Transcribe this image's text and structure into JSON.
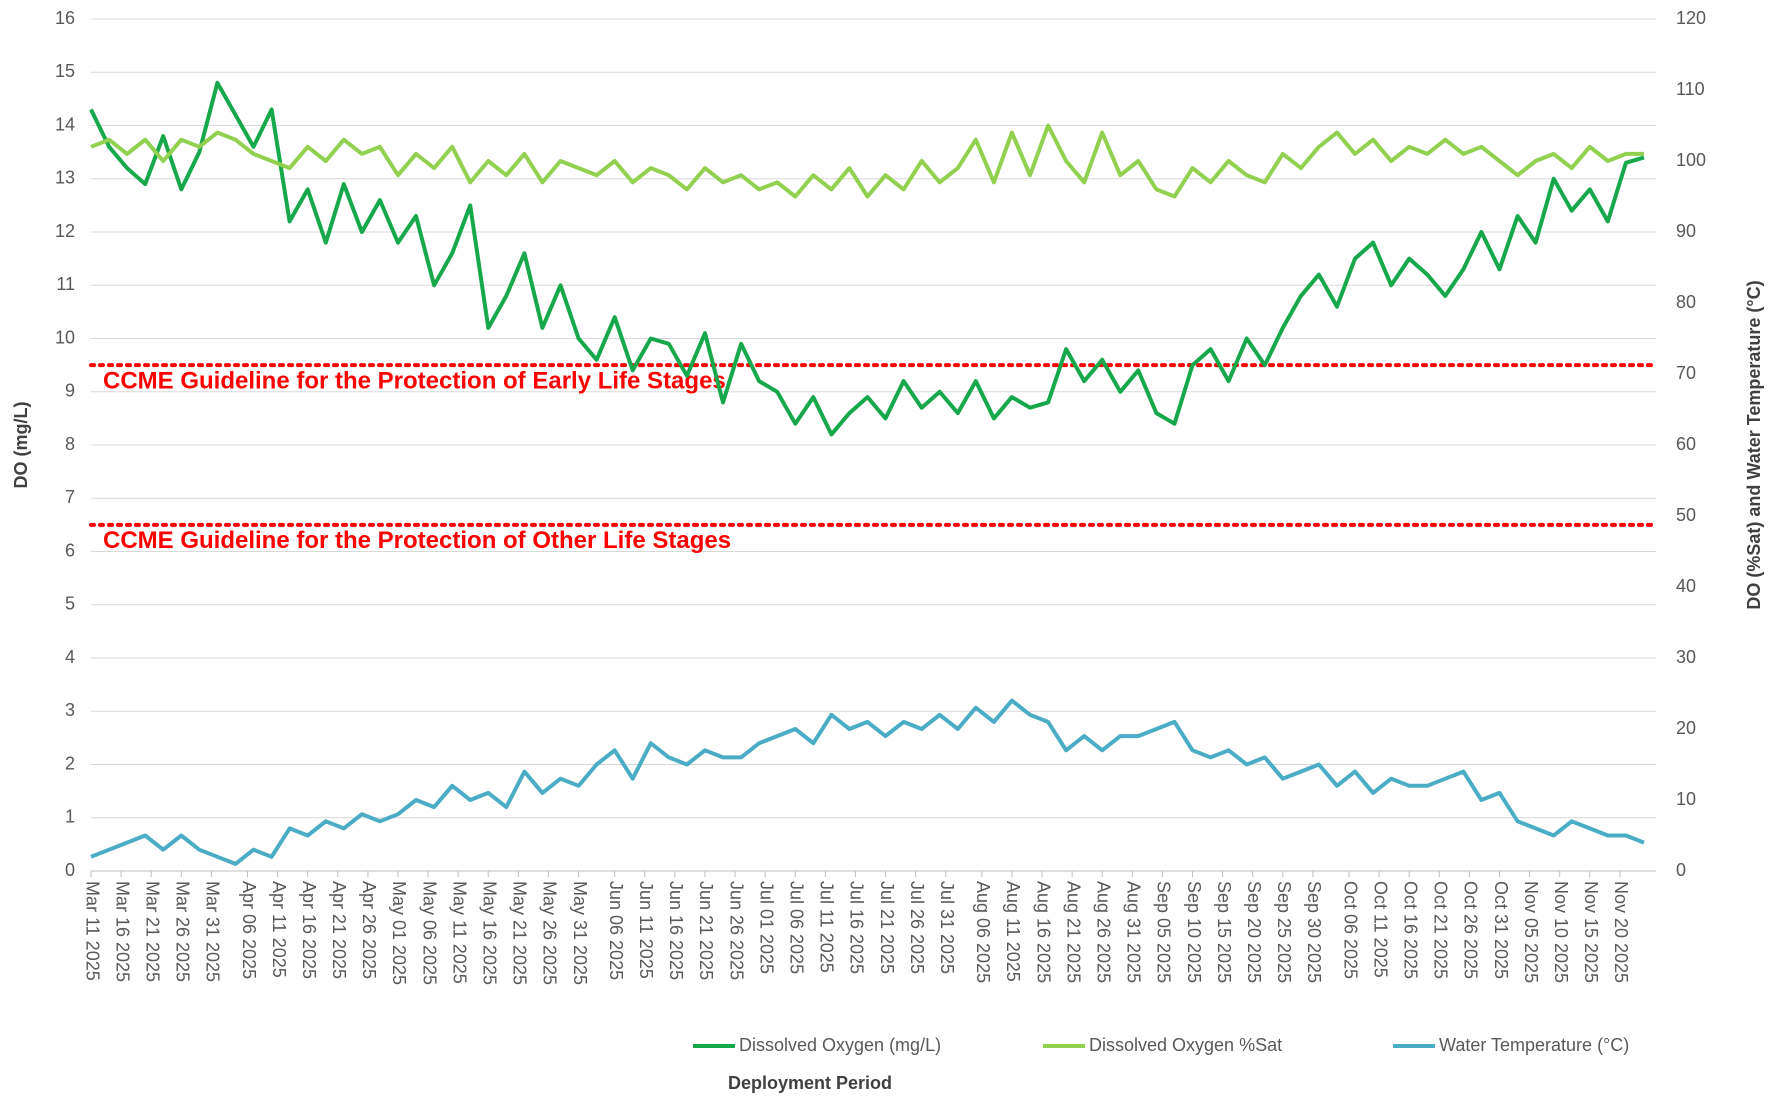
{
  "chart_data": {
    "type": "line",
    "y_label": "DO (mg/L)",
    "y2_label": "DO (%Sat) and Water Temperature (°C)",
    "x_label": "Deployment Period",
    "x": [
      "2025-03-11",
      "2025-03-14",
      "2025-03-17",
      "2025-03-20",
      "2025-03-23",
      "2025-03-26",
      "2025-03-29",
      "2025-04-01",
      "2025-04-04",
      "2025-04-07",
      "2025-04-10",
      "2025-04-13",
      "2025-04-16",
      "2025-04-19",
      "2025-04-22",
      "2025-04-25",
      "2025-04-28",
      "2025-05-01",
      "2025-05-04",
      "2025-05-07",
      "2025-05-10",
      "2025-05-13",
      "2025-05-16",
      "2025-05-19",
      "2025-05-22",
      "2025-05-25",
      "2025-05-28",
      "2025-05-31",
      "2025-06-03",
      "2025-06-06",
      "2025-06-09",
      "2025-06-12",
      "2025-06-15",
      "2025-06-18",
      "2025-06-21",
      "2025-06-24",
      "2025-06-27",
      "2025-06-30",
      "2025-07-03",
      "2025-07-06",
      "2025-07-09",
      "2025-07-12",
      "2025-07-15",
      "2025-07-18",
      "2025-07-21",
      "2025-07-24",
      "2025-07-27",
      "2025-07-30",
      "2025-08-02",
      "2025-08-05",
      "2025-08-08",
      "2025-08-11",
      "2025-08-14",
      "2025-08-17",
      "2025-08-20",
      "2025-08-23",
      "2025-08-26",
      "2025-08-29",
      "2025-09-01",
      "2025-09-04",
      "2025-09-07",
      "2025-09-10",
      "2025-09-13",
      "2025-09-16",
      "2025-09-19",
      "2025-09-22",
      "2025-09-25",
      "2025-09-28",
      "2025-10-01",
      "2025-10-04",
      "2025-10-07",
      "2025-10-10",
      "2025-10-13",
      "2025-10-16",
      "2025-10-19",
      "2025-10-22",
      "2025-10-25",
      "2025-10-28",
      "2025-10-31",
      "2025-11-03",
      "2025-11-06",
      "2025-11-09",
      "2025-11-12",
      "2025-11-15",
      "2025-11-18",
      "2025-11-21",
      "2025-11-24"
    ],
    "series": [
      {
        "name": "Dissolved Oxygen (mg/L)",
        "color": "#17a84b",
        "axis": "y",
        "values": [
          14.3,
          13.6,
          13.2,
          12.9,
          13.8,
          12.8,
          13.5,
          14.8,
          14.2,
          13.6,
          14.3,
          12.2,
          12.8,
          11.8,
          12.9,
          12.0,
          12.6,
          11.8,
          12.3,
          11.0,
          11.6,
          12.5,
          10.2,
          10.8,
          11.6,
          10.2,
          11.0,
          10.0,
          9.6,
          10.4,
          9.4,
          10.0,
          9.9,
          9.3,
          10.1,
          8.8,
          9.9,
          9.2,
          9.0,
          8.4,
          8.9,
          8.2,
          8.6,
          8.9,
          8.5,
          9.2,
          8.7,
          9.0,
          8.6,
          9.2,
          8.5,
          8.9,
          8.7,
          8.8,
          9.8,
          9.2,
          9.6,
          9.0,
          9.4,
          8.6,
          8.4,
          9.5,
          9.8,
          9.2,
          10.0,
          9.5,
          10.2,
          10.8,
          11.2,
          10.6,
          11.5,
          11.8,
          11.0,
          11.5,
          11.2,
          10.8,
          11.3,
          12.0,
          11.3,
          12.3,
          11.8,
          13.0,
          12.4,
          12.8,
          12.2,
          13.3,
          13.4
        ]
      },
      {
        "name": "Dissolved Oxygen %Sat",
        "color": "#92d050",
        "axis": "y2",
        "values": [
          102,
          103,
          101,
          103,
          100,
          103,
          102,
          104,
          103,
          101,
          100,
          99,
          102,
          100,
          103,
          101,
          102,
          98,
          101,
          99,
          102,
          97,
          100,
          98,
          101,
          97,
          100,
          99,
          98,
          100,
          97,
          99,
          98,
          96,
          99,
          97,
          98,
          96,
          97,
          95,
          98,
          96,
          99,
          95,
          98,
          96,
          100,
          97,
          99,
          103,
          97,
          104,
          98,
          105,
          100,
          97,
          104,
          98,
          100,
          96,
          95,
          99,
          97,
          100,
          98,
          97,
          101,
          99,
          102,
          104,
          101,
          103,
          100,
          102,
          101,
          103,
          101,
          102,
          100,
          98,
          100,
          101,
          99,
          102,
          100,
          101,
          101
        ]
      },
      {
        "name": "Water Temperature (°C)",
        "color": "#4bacc6",
        "axis": "y2",
        "values": [
          2,
          3,
          4,
          5,
          3,
          5,
          3,
          2,
          1,
          3,
          2,
          6,
          5,
          7,
          6,
          8,
          7,
          8,
          10,
          9,
          12,
          10,
          11,
          9,
          14,
          11,
          13,
          12,
          15,
          17,
          13,
          18,
          16,
          15,
          17,
          16,
          16,
          18,
          19,
          20,
          18,
          22,
          20,
          21,
          19,
          21,
          20,
          22,
          20,
          23,
          21,
          24,
          22,
          21,
          17,
          19,
          17,
          19,
          19,
          20,
          21,
          17,
          16,
          17,
          15,
          16,
          13,
          14,
          15,
          12,
          14,
          11,
          13,
          12,
          12,
          13,
          14,
          10,
          11,
          7,
          6,
          5,
          7,
          6,
          5,
          5,
          4
        ]
      }
    ],
    "annotations": [
      {
        "text": "CCME Guideline for the Protection of Early Life Stages",
        "value": 9.5,
        "color": "#ff0000"
      },
      {
        "text": "CCME Guideline for the Protection of Other Life Stages",
        "value": 6.5,
        "color": "#ff0000"
      }
    ],
    "xlim": [
      "2025-03-11",
      "2025-11-26"
    ],
    "xticks": [
      {
        "value": "2025-03-11",
        "label": "Mar 11 2025"
      },
      {
        "value": "2025-03-16",
        "label": "Mar 16 2025"
      },
      {
        "value": "2025-03-21",
        "label": "Mar 21 2025"
      },
      {
        "value": "2025-03-26",
        "label": "Mar 26 2025"
      },
      {
        "value": "2025-03-31",
        "label": "Mar 31 2025"
      },
      {
        "value": "2025-04-06",
        "label": "Apr 06 2025"
      },
      {
        "value": "2025-04-11",
        "label": "Apr 11 2025"
      },
      {
        "value": "2025-04-16",
        "label": "Apr 16 2025"
      },
      {
        "value": "2025-04-21",
        "label": "Apr 21 2025"
      },
      {
        "value": "2025-04-26",
        "label": "Apr 26 2025"
      },
      {
        "value": "2025-05-01",
        "label": "May 01 2025"
      },
      {
        "value": "2025-05-06",
        "label": "May 06 2025"
      },
      {
        "value": "2025-05-11",
        "label": "May 11 2025"
      },
      {
        "value": "2025-05-16",
        "label": "May 16 2025"
      },
      {
        "value": "2025-05-21",
        "label": "May 21 2025"
      },
      {
        "value": "2025-05-26",
        "label": "May 26 2025"
      },
      {
        "value": "2025-05-31",
        "label": "May 31 2025"
      },
      {
        "value": "2025-06-06",
        "label": "Jun 06 2025"
      },
      {
        "value": "2025-06-11",
        "label": "Jun 11 2025"
      },
      {
        "value": "2025-06-16",
        "label": "Jun 16 2025"
      },
      {
        "value": "2025-06-21",
        "label": "Jun 21 2025"
      },
      {
        "value": "2025-06-26",
        "label": "Jun 26 2025"
      },
      {
        "value": "2025-07-01",
        "label": "Jul 01 2025"
      },
      {
        "value": "2025-07-06",
        "label": "Jul 06 2025"
      },
      {
        "value": "2025-07-11",
        "label": "Jul 11 2025"
      },
      {
        "value": "2025-07-16",
        "label": "Jul 16 2025"
      },
      {
        "value": "2025-07-21",
        "label": "Jul 21 2025"
      },
      {
        "value": "2025-07-26",
        "label": "Jul 26 2025"
      },
      {
        "value": "2025-07-31",
        "label": "Jul 31 2025"
      },
      {
        "value": "2025-08-06",
        "label": "Aug 06 2025"
      },
      {
        "value": "2025-08-11",
        "label": "Aug 11 2025"
      },
      {
        "value": "2025-08-16",
        "label": "Aug 16 2025"
      },
      {
        "value": "2025-08-21",
        "label": "Aug 21 2025"
      },
      {
        "value": "2025-08-26",
        "label": "Aug 26 2025"
      },
      {
        "value": "2025-08-31",
        "label": "Aug 31 2025"
      },
      {
        "value": "2025-09-05",
        "label": "Sep 05 2025"
      },
      {
        "value": "2025-09-10",
        "label": "Sep 10 2025"
      },
      {
        "value": "2025-09-15",
        "label": "Sep 15 2025"
      },
      {
        "value": "2025-09-20",
        "label": "Sep 20 2025"
      },
      {
        "value": "2025-09-25",
        "label": "Sep 25 2025"
      },
      {
        "value": "2025-09-30",
        "label": "Sep 30 2025"
      },
      {
        "value": "2025-10-06",
        "label": "Oct 06 2025"
      },
      {
        "value": "2025-10-11",
        "label": "Oct 11 2025"
      },
      {
        "value": "2025-10-16",
        "label": "Oct 16 2025"
      },
      {
        "value": "2025-10-21",
        "label": "Oct 21 2025"
      },
      {
        "value": "2025-10-26",
        "label": "Oct 26 2025"
      },
      {
        "value": "2025-10-31",
        "label": "Oct 31 2025"
      },
      {
        "value": "2025-11-05",
        "label": "Nov 05 2025"
      },
      {
        "value": "2025-11-10",
        "label": "Nov 10 2025"
      },
      {
        "value": "2025-11-15",
        "label": "Nov 15 2025"
      },
      {
        "value": "2025-11-20",
        "label": "Nov 20 2025"
      }
    ],
    "ylim": [
      0,
      16
    ],
    "yticks": [
      0,
      1,
      2,
      3,
      4,
      5,
      6,
      7,
      8,
      9,
      10,
      11,
      12,
      13,
      14,
      15,
      16
    ],
    "y2lim": [
      0,
      120
    ],
    "y2ticks": [
      0,
      10,
      20,
      30,
      40,
      50,
      60,
      70,
      80,
      90,
      100,
      110,
      120
    ],
    "grid": true,
    "legend": "bottom"
  }
}
